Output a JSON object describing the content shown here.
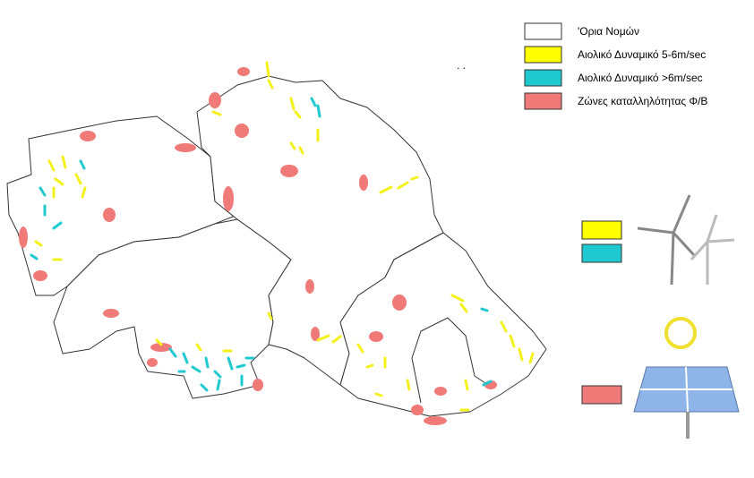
{
  "legend": {
    "items": [
      {
        "label": "'Ορια Νομών"
      },
      {
        "label": "Αιολικό Δυναμικό 5-6m/sec"
      },
      {
        "label": "Αιολικό Δυναμικό >6m/sec"
      },
      {
        "label": "Ζώνες καταλληλότητας Φ/Β"
      }
    ]
  }
}
